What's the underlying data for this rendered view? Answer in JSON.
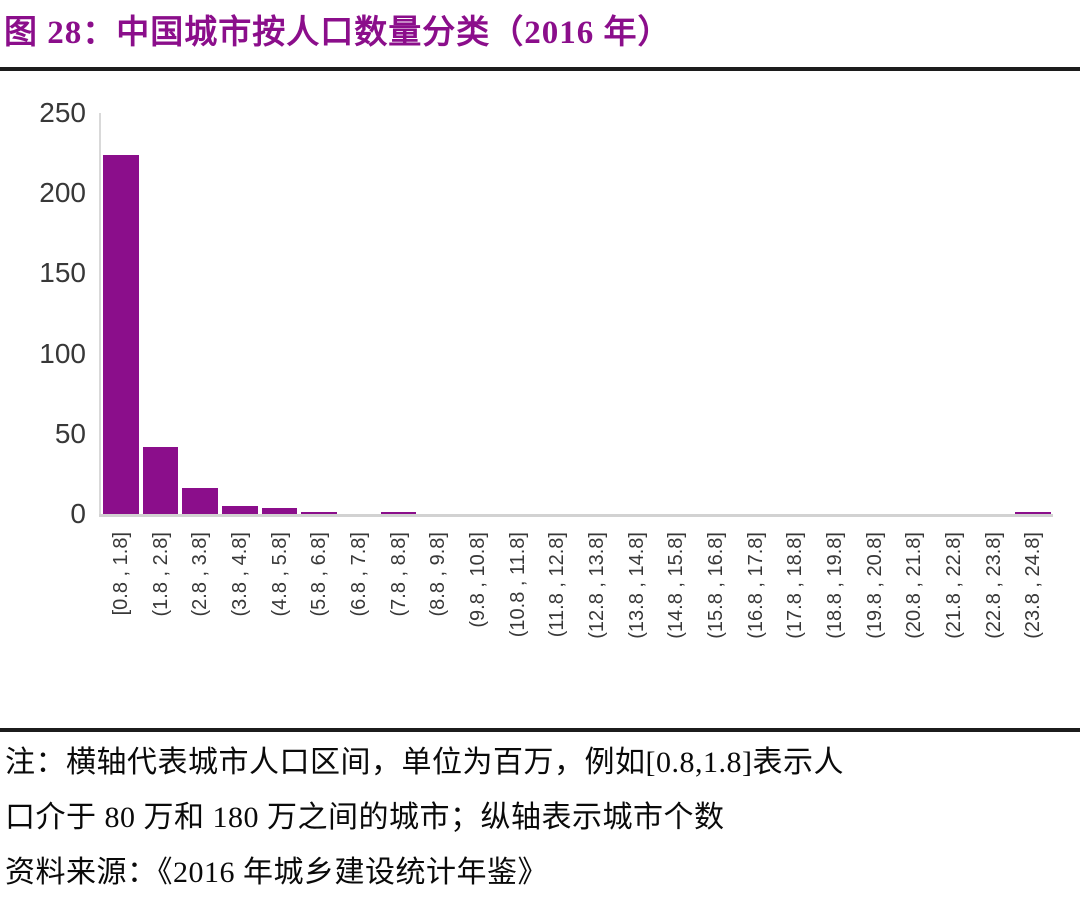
{
  "title": "图 28：中国城市按人口数量分类（2016 年）",
  "colors": {
    "accent": "#8B0E8B",
    "bar": "#8B0E8B",
    "axis_line": "#D9D9D9",
    "tick_text": "#383838",
    "rule": "#1C1C1C",
    "note_text": "#0A0A0A"
  },
  "chart_data": {
    "type": "bar",
    "title": "中国城市按人口数量分类（2016 年）",
    "categories": [
      "[0.8 , 1.8]",
      "(1.8 , 2.8]",
      "(2.8 , 3.8]",
      "(3.8 , 4.8]",
      "(4.8 , 5.8]",
      "(5.8 , 6.8]",
      "(6.8 , 7.8]",
      "(7.8 , 8.8]",
      "(8.8 , 9.8]",
      "(9.8 , 10.8]",
      "(10.8 , 11.8]",
      "(11.8 , 12.8]",
      "(12.8 , 13.8]",
      "(13.8 , 14.8]",
      "(14.8 , 15.8]",
      "(15.8 , 16.8]",
      "(16.8 , 17.8]",
      "(17.8 , 18.8]",
      "(18.8 , 19.8]",
      "(19.8 , 20.8]",
      "(20.8 , 21.8]",
      "(21.8 , 22.8]",
      "(22.8 , 23.8]",
      "(23.8 , 24.8]"
    ],
    "values": [
      224,
      42,
      16,
      5,
      4,
      1,
      0,
      1,
      0,
      0,
      0,
      0,
      0,
      0,
      0,
      0,
      0,
      0,
      0,
      0,
      0,
      0,
      0,
      1
    ],
    "xlabel": "",
    "ylabel": "",
    "ylim": [
      0,
      250
    ],
    "yticks": [
      0,
      50,
      100,
      150,
      200,
      250
    ],
    "grid": false,
    "legend": "none",
    "bar_color": "#8B0E8B",
    "x_unit_note": "横轴代表城市人口区间，单位为百万",
    "y_unit_note": "纵轴表示城市个数"
  },
  "notes": {
    "line1": "注：横轴代表城市人口区间，单位为百万，例如[0.8,1.8]表示人",
    "line2": "口介于 80 万和 180 万之间的城市；纵轴表示城市个数",
    "line3": "资料来源：《2016 年城乡建设统计年鉴》"
  }
}
